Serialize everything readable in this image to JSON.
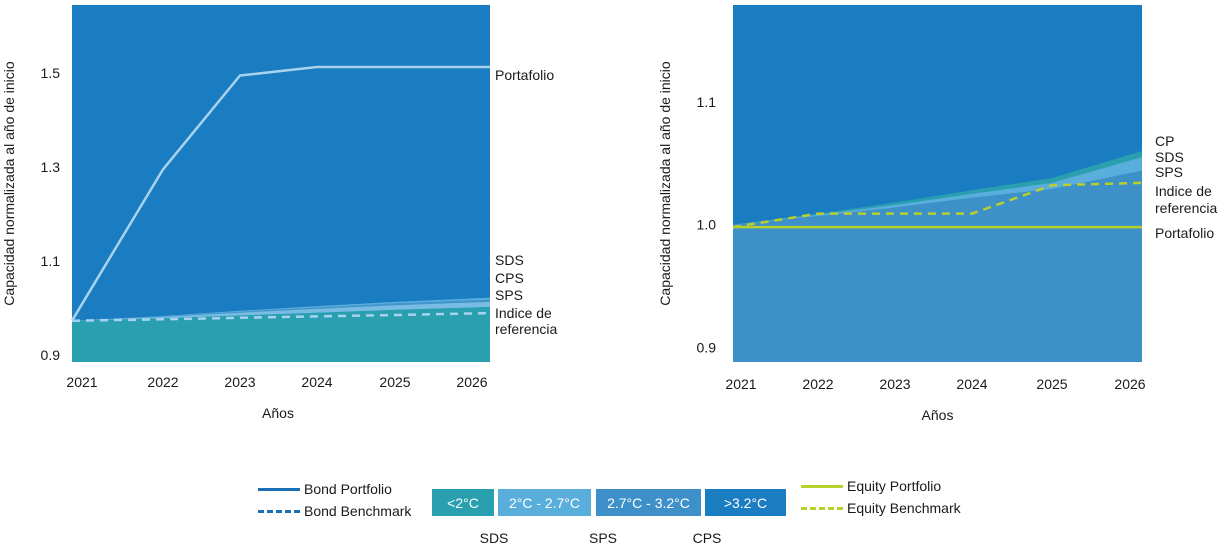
{
  "colors": {
    "above_3_2": "#1a7cc1",
    "range_2_7_3_2": "#3d90c8",
    "range_2_2_7": "#5aaedc",
    "below_2": "#2a9fb0",
    "bond_line": "#1a6fb5",
    "bond_portfolio_line": "#a7d3ef",
    "bond_benchmark_line": "#a7d3ef",
    "equity_line": "#b9cf2a",
    "text": "#1a1a1a"
  },
  "legend": {
    "bond_portfolio": "Bond Portfolio",
    "bond_benchmark": "Bond Benchmark",
    "equity_portfolio": "Equity Portfolio",
    "equity_benchmark": "Equity Benchmark",
    "boxes": [
      "<2°C",
      "2°C - 2.7°C",
      "2.7°C - 3.2°C",
      ">3.2°C"
    ],
    "scenarios": [
      "SDS",
      "SPS",
      "CPS"
    ]
  },
  "chart_data": [
    {
      "type": "area",
      "xlabel": "Años",
      "ylabel": "Capacidad normalizada al año de inicio",
      "categories": [
        "2021",
        "2022",
        "2023",
        "2024",
        "2025",
        "2026"
      ],
      "yticks": [
        "0.9",
        "1.1",
        "1.3",
        "1.5"
      ],
      "ylim": [
        0.885,
        1.645
      ],
      "bands": {
        "below_2c_top": [
          0.973,
          0.978,
          0.984,
          0.99,
          0.996,
          1.002
        ],
        "sds_top": [
          0.973,
          0.983,
          0.994,
          1.004,
          1.013,
          1.022
        ],
        "sps_top": [
          0.973,
          0.981,
          0.99,
          0.998,
          1.006,
          1.013
        ],
        "cps_top": [
          0.973,
          0.982,
          0.992,
          1.001,
          1.01,
          1.018
        ]
      },
      "series": [
        {
          "name": "Portafolio",
          "values": [
            0.973,
            1.295,
            1.495,
            1.513,
            1.513,
            1.513
          ]
        },
        {
          "name": "Indice de referencia",
          "values": [
            0.973,
            0.976,
            0.979,
            0.982,
            0.985,
            0.989
          ]
        }
      ],
      "labels": [
        "Portafolio",
        "SDS",
        "CPS",
        "SPS",
        "Indice de",
        "referencia"
      ]
    },
    {
      "type": "area",
      "xlabel": "Años",
      "ylabel": "Capacidad normalizada al año de inicio",
      "categories": [
        "2021",
        "2022",
        "2023",
        "2024",
        "2025",
        "2026"
      ],
      "yticks": [
        "0.9",
        "1.0",
        "1.1"
      ],
      "ylim": [
        0.888,
        1.179
      ],
      "bands": {
        "cp_top": [
          1.0,
          1.009,
          1.018,
          1.028,
          1.038,
          1.06
        ],
        "sds_top": [
          1.0,
          1.008,
          1.016,
          1.025,
          1.034,
          1.055
        ],
        "sps_top": [
          1.0,
          1.007,
          1.014,
          1.022,
          1.029,
          1.044
        ]
      },
      "series": [
        {
          "name": "Portafolio",
          "values": [
            0.998,
            0.998,
            0.998,
            0.998,
            0.998,
            0.998
          ]
        },
        {
          "name": "Indice de referencia",
          "values": [
            0.998,
            1.009,
            1.009,
            1.009,
            1.032,
            1.034
          ]
        }
      ],
      "labels": [
        "CP",
        "SDS",
        "SPS",
        "Indice de",
        "referencia",
        "Portafolio"
      ]
    }
  ]
}
